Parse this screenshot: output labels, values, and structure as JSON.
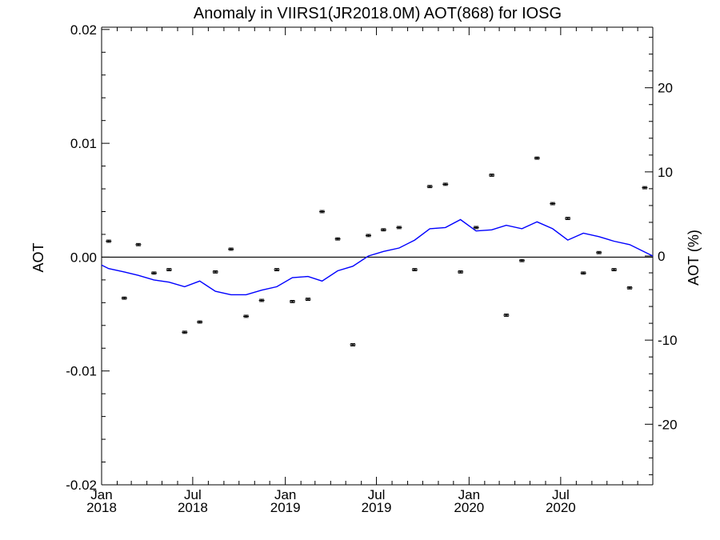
{
  "chart_data": {
    "type": "scatter",
    "title": "Anomaly in VIIRS1(JR2018.0M) AOT(868) for IOSG",
    "ylabel": "AOT",
    "y2label": "AOT (%)",
    "xlim": [
      "2018-01-01",
      "2020-12-31"
    ],
    "ylim": [
      -0.02,
      0.0202
    ],
    "y2lim": [
      -27.2,
      27.2
    ],
    "y_ticks": [
      "0.02",
      "0.01",
      "0.00",
      "-0.01",
      "-0.02"
    ],
    "y_tick_values": [
      0.02,
      0.01,
      0.0,
      -0.01,
      -0.02
    ],
    "y2_ticks": [
      "20",
      "10",
      "0",
      "-10",
      "-20"
    ],
    "y2_tick_values": [
      20,
      10,
      0,
      -10,
      -20
    ],
    "x_ticks": [
      {
        "month": "Jan",
        "year": "2018",
        "date": "2018-01-01"
      },
      {
        "month": "Jul",
        "year": "2018",
        "date": "2018-07-01"
      },
      {
        "month": "Jan",
        "year": "2019",
        "date": "2019-01-01"
      },
      {
        "month": "Jul",
        "year": "2019",
        "date": "2019-07-01"
      },
      {
        "month": "Jan",
        "year": "2020",
        "date": "2020-01-01"
      },
      {
        "month": "Jul",
        "year": "2020",
        "date": "2020-07-01"
      }
    ],
    "zero_line": true,
    "grid": false,
    "colors": {
      "points": "#000000",
      "running_mean": "#0000ff",
      "axes": "#000000"
    },
    "series": [
      {
        "style": "points-with-errorbars",
        "x": [
          "2018-01-15",
          "2018-02-15",
          "2018-03-15",
          "2018-04-15",
          "2018-05-15",
          "2018-06-15",
          "2018-07-15",
          "2018-08-15",
          "2018-09-15",
          "2018-10-15",
          "2018-11-15",
          "2018-12-15",
          "2019-01-15",
          "2019-02-15",
          "2019-03-15",
          "2019-04-15",
          "2019-05-15",
          "2019-06-15",
          "2019-07-15",
          "2019-08-15",
          "2019-09-15",
          "2019-10-15",
          "2019-11-15",
          "2019-12-15",
          "2020-01-15",
          "2020-02-15",
          "2020-03-15",
          "2020-04-15",
          "2020-05-15",
          "2020-06-15",
          "2020-07-15",
          "2020-08-15",
          "2020-09-15",
          "2020-10-15",
          "2020-11-15",
          "2020-12-15"
        ],
        "y": [
          0.0014,
          -0.0036,
          0.0011,
          -0.0014,
          -0.0011,
          -0.0066,
          -0.0057,
          -0.0013,
          0.0007,
          -0.0052,
          -0.0038,
          -0.0011,
          -0.0039,
          -0.0037,
          0.004,
          0.0016,
          -0.0077,
          0.0019,
          0.0024,
          0.0026,
          -0.0011,
          0.0062,
          0.0064,
          -0.0013,
          0.0026,
          0.0072,
          -0.0051,
          -0.0003,
          0.0087,
          0.0047,
          0.0034,
          -0.0014,
          0.0004,
          -0.0011,
          -0.0027,
          0.0061
        ],
        "yerr": 0.0001
      },
      {
        "style": "line",
        "x": [
          "2018-01-01",
          "2018-01-15",
          "2018-02-15",
          "2018-03-15",
          "2018-04-15",
          "2018-05-15",
          "2018-06-15",
          "2018-07-15",
          "2018-08-15",
          "2018-09-15",
          "2018-10-15",
          "2018-11-15",
          "2018-12-15",
          "2019-01-15",
          "2019-02-15",
          "2019-03-15",
          "2019-04-15",
          "2019-05-15",
          "2019-06-15",
          "2019-07-15",
          "2019-08-15",
          "2019-09-15",
          "2019-10-15",
          "2019-11-15",
          "2019-12-15",
          "2020-01-15",
          "2020-02-15",
          "2020-03-15",
          "2020-04-15",
          "2020-05-15",
          "2020-06-15",
          "2020-07-15",
          "2020-08-15",
          "2020-09-15",
          "2020-10-15",
          "2020-11-15",
          "2020-12-31"
        ],
        "y": [
          -0.0007,
          -0.001,
          -0.0013,
          -0.0016,
          -0.002,
          -0.0022,
          -0.0026,
          -0.0021,
          -0.003,
          -0.0033,
          -0.0033,
          -0.0029,
          -0.0026,
          -0.0018,
          -0.0017,
          -0.0021,
          -0.0012,
          -0.0008,
          0.0001,
          0.0005,
          0.0008,
          0.0015,
          0.0025,
          0.0026,
          0.0033,
          0.0023,
          0.0024,
          0.0028,
          0.0025,
          0.0031,
          0.0025,
          0.0015,
          0.0021,
          0.0018,
          0.0014,
          0.0011,
          0.0001
        ]
      }
    ]
  }
}
